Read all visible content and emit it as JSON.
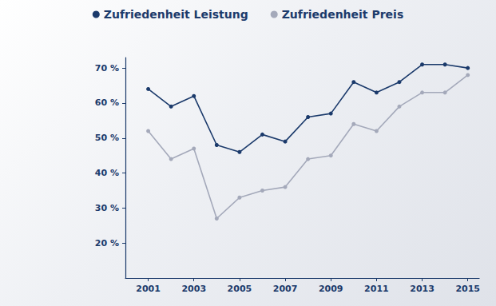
{
  "chart_data": {
    "type": "line",
    "x": [
      2001,
      2002,
      2003,
      2004,
      2005,
      2006,
      2007,
      2008,
      2009,
      2010,
      2011,
      2012,
      2013,
      2014,
      2015
    ],
    "xlim": [
      2000,
      2015.5
    ],
    "xticks": [
      2001,
      2003,
      2005,
      2007,
      2009,
      2011,
      2013,
      2015
    ],
    "ylim": [
      10,
      73
    ],
    "yticks": [
      {
        "value": 20,
        "label": "20 %"
      },
      {
        "value": 30,
        "label": "30 %"
      },
      {
        "value": 40,
        "label": "40 %"
      },
      {
        "value": 50,
        "label": "50 %"
      },
      {
        "value": 60,
        "label": "60 %"
      },
      {
        "value": 70,
        "label": "70 %"
      }
    ],
    "grid": false,
    "legend": "top",
    "series": [
      {
        "name": "Zufriedenheit Leistung",
        "color": "#1b3a6b",
        "marker": "circle",
        "values": [
          64,
          59,
          62,
          48,
          46,
          51,
          49,
          56,
          57,
          66,
          63,
          66,
          71,
          71,
          70
        ]
      },
      {
        "name": "Zufriedenheit Preis",
        "color": "#a4a9ba",
        "marker": "circle",
        "values": [
          52,
          44,
          47,
          27,
          33,
          35,
          36,
          44,
          45,
          54,
          52,
          59,
          63,
          63,
          68
        ]
      }
    ]
  }
}
